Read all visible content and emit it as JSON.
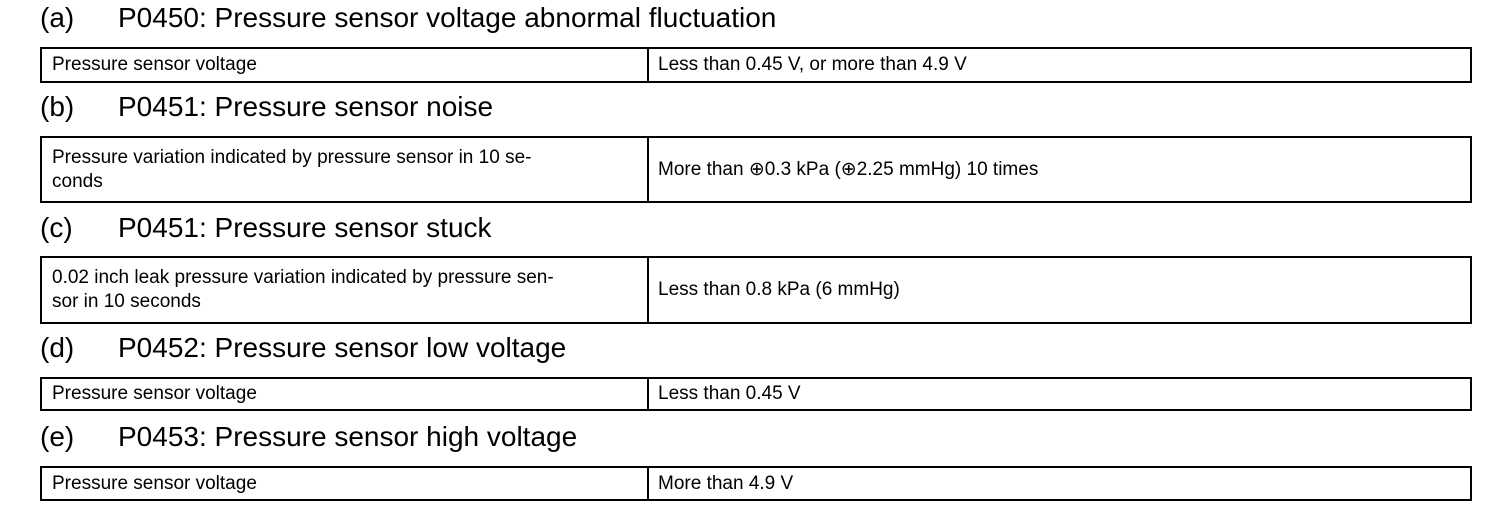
{
  "sections": [
    {
      "label": "(a)",
      "title": "P0450: Pressure sensor voltage abnormal fluctuation",
      "cells": [
        [
          "Pressure sensor voltage"
        ],
        [
          "Less than 0.45 V, or more than 4.9 V"
        ]
      ]
    },
    {
      "label": "(b)",
      "title": "P0451: Pressure sensor noise",
      "cells": [
        [
          "Pressure variation indicated by pressure sensor in 10 se-",
          "conds"
        ],
        [
          "More than ⊕0.3 kPa (⊕2.25 mmHg) 10 times"
        ]
      ]
    },
    {
      "label": "(c)",
      "title": "P0451: Pressure sensor stuck",
      "cells": [
        [
          "0.02 inch leak pressure variation indicated by pressure sen-",
          "sor in 10 seconds"
        ],
        [
          "Less than 0.8 kPa (6 mmHg)"
        ]
      ]
    },
    {
      "label": "(d)",
      "title": "P0452: Pressure sensor low voltage",
      "cells": [
        [
          "Pressure sensor voltage"
        ],
        [
          "Less than 0.45 V"
        ]
      ]
    },
    {
      "label": "(e)",
      "title": "P0453: Pressure sensor high voltage",
      "cells": [
        [
          "Pressure sensor voltage"
        ],
        [
          "More than 4.9 V"
        ]
      ]
    }
  ]
}
